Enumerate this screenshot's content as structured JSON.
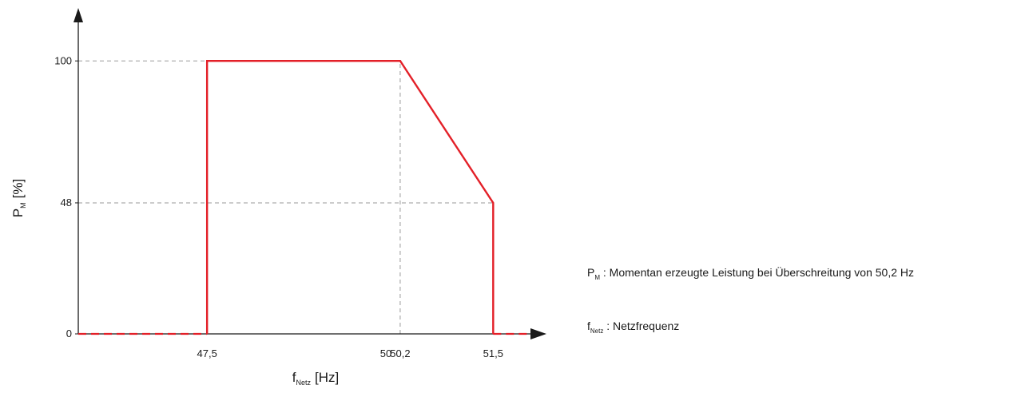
{
  "chart_data": {
    "type": "line",
    "title": "",
    "xlabel": {
      "main": "f",
      "sub": "Netz",
      "unit": "[Hz]"
    },
    "ylabel": {
      "main": "P",
      "sub": "M",
      "unit": "[%]"
    },
    "x_ticks": [
      {
        "value": 47.5,
        "label": "47,5"
      },
      {
        "value": 50.0,
        "label": "50"
      },
      {
        "value": 50.2,
        "label": "50,2"
      },
      {
        "value": 51.5,
        "label": "51,5"
      }
    ],
    "y_ticks": [
      {
        "value": 0,
        "label": "0"
      },
      {
        "value": 48,
        "label": "48"
      },
      {
        "value": 100,
        "label": "100"
      }
    ],
    "xlim": [
      45.7,
      52.2
    ],
    "ylim": [
      0,
      115
    ],
    "series": [
      {
        "color": "#e32028",
        "points": [
          [
            47.5,
            0
          ],
          [
            47.5,
            100
          ],
          [
            50.2,
            100
          ],
          [
            51.5,
            48
          ],
          [
            51.5,
            0
          ]
        ]
      }
    ],
    "dashed_segments": [
      {
        "x": [
          45.7,
          47.5
        ],
        "y": 0,
        "color": "#e32028"
      },
      {
        "x": [
          51.5,
          52.0
        ],
        "y": 0,
        "color": "#e32028"
      }
    ],
    "reference_lines": [
      {
        "orientation": "horizontal",
        "y": 100,
        "x_to": 50.2
      },
      {
        "orientation": "horizontal",
        "y": 48,
        "x_to": 51.5
      },
      {
        "orientation": "vertical",
        "x": 50.2,
        "y_to": 100
      }
    ],
    "grid": false
  },
  "legend": [
    {
      "symbol": "P",
      "sub": "M",
      "text": " : Momentan erzeugte Leistung bei Überschreitung von 50,2 Hz"
    },
    {
      "symbol": "f",
      "sub": "Netz",
      "text": " : Netzfrequenz"
    }
  ]
}
